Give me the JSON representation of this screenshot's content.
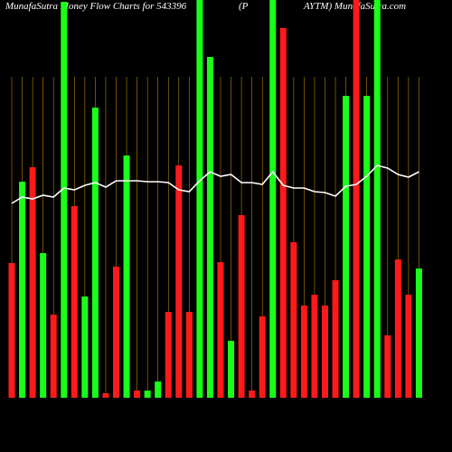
{
  "chart_data": {
    "type": "bar",
    "title": [
      "MunafaSutra  Money Flow  Charts for 543396",
      "(P",
      "AYTM) MunafaSutra.com"
    ],
    "categories": [
      null,
      null,
      null,
      null,
      null,
      null,
      null,
      null,
      null,
      null,
      null,
      null,
      null,
      null,
      null,
      null,
      null,
      null,
      null,
      null,
      null,
      null,
      null,
      null,
      null,
      null,
      null,
      null,
      null,
      null,
      null,
      null,
      null,
      null,
      null,
      null,
      null,
      null,
      null,
      null
    ],
    "ylim": [
      0,
      440
    ],
    "grid_color": "#b8860b",
    "series": [
      {
        "type": "bar",
        "values": [
          149,
          239,
          255,
          160,
          92,
          438,
          212,
          112,
          321,
          5,
          145,
          268,
          8,
          8,
          18,
          95,
          257,
          95,
          440,
          377,
          150,
          63,
          202,
          8,
          90,
          440,
          409,
          172,
          102,
          114,
          102,
          130,
          334,
          440,
          334,
          440,
          69,
          153,
          114,
          143
        ],
        "colors": [
          "#ff1a1a",
          "#1aff1a",
          "#ff1a1a",
          "#1aff1a",
          "#ff1a1a",
          "#1aff1a",
          "#ff1a1a",
          "#1aff1a",
          "#1aff1a",
          "#ff1a1a",
          "#ff1a1a",
          "#1aff1a",
          "#ff1a1a",
          "#1aff1a",
          "#1aff1a",
          "#ff1a1a",
          "#ff1a1a",
          "#ff1a1a",
          "#1aff1a",
          "#1aff1a",
          "#ff1a1a",
          "#1aff1a",
          "#ff1a1a",
          "#ff1a1a",
          "#ff1a1a",
          "#1aff1a",
          "#ff1a1a",
          "#ff1a1a",
          "#ff1a1a",
          "#ff1a1a",
          "#ff1a1a",
          "#ff1a1a",
          "#1aff1a",
          "#ff1a1a",
          "#1aff1a",
          "#1aff1a",
          "#ff1a1a",
          "#ff1a1a",
          "#ff1a1a",
          "#1aff1a"
        ]
      },
      {
        "type": "line",
        "color": "#ffffff",
        "values": [
          215,
          222,
          220,
          224,
          222,
          232,
          230,
          235,
          238,
          233,
          240,
          240,
          240,
          239,
          239,
          238,
          230,
          228,
          240,
          250,
          245,
          247,
          238,
          238,
          236,
          250,
          235,
          232,
          232,
          228,
          227,
          223,
          234,
          236,
          245,
          257,
          254,
          247,
          244,
          250
        ]
      }
    ]
  }
}
